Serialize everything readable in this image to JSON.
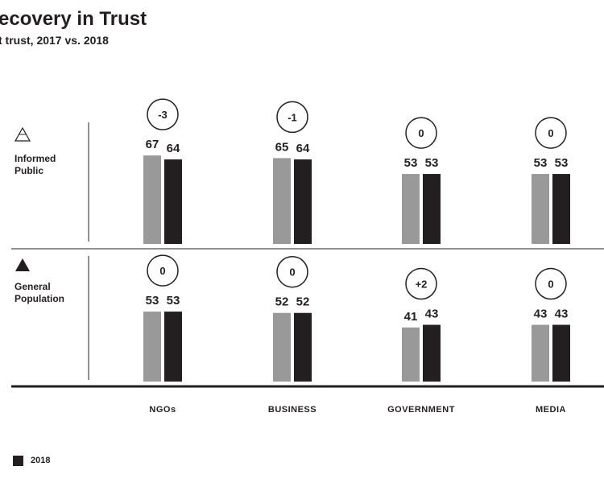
{
  "title": "ecovery in Trust",
  "subtitle": "t trust, 2017 vs. 2018",
  "legend": {
    "label_2018": "2018",
    "color_2017": "#999999",
    "color_2018": "#231f20"
  },
  "rows": [
    {
      "label_line1": "Informed",
      "label_line2": "Public",
      "icon": "outlined-triangle-icon"
    },
    {
      "label_line1": "General",
      "label_line2": "Population",
      "icon": "filled-triangle-icon"
    }
  ],
  "chart_data": {
    "type": "bar",
    "title": "ecovery in Trust",
    "subtitle": "t trust, 2017 vs. 2018",
    "categories": [
      "NGOs",
      "BUSINESS",
      "GOVERNMENT",
      "MEDIA"
    ],
    "panels": [
      {
        "name": "Informed Public",
        "series": [
          {
            "values": [
              67,
              65,
              53,
              53
            ]
          },
          {
            "name": "2018",
            "values": [
              64,
              64,
              53,
              53
            ]
          }
        ],
        "change": [
          "-3",
          "-1",
          "0",
          "0"
        ]
      },
      {
        "name": "General Population",
        "series": [
          {
            "values": [
              53,
              52,
              41,
              43
            ]
          },
          {
            "name": "2018",
            "values": [
              53,
              52,
              43,
              43
            ]
          }
        ],
        "change": [
          "0",
          "0",
          "+2",
          "0"
        ]
      }
    ]
  }
}
